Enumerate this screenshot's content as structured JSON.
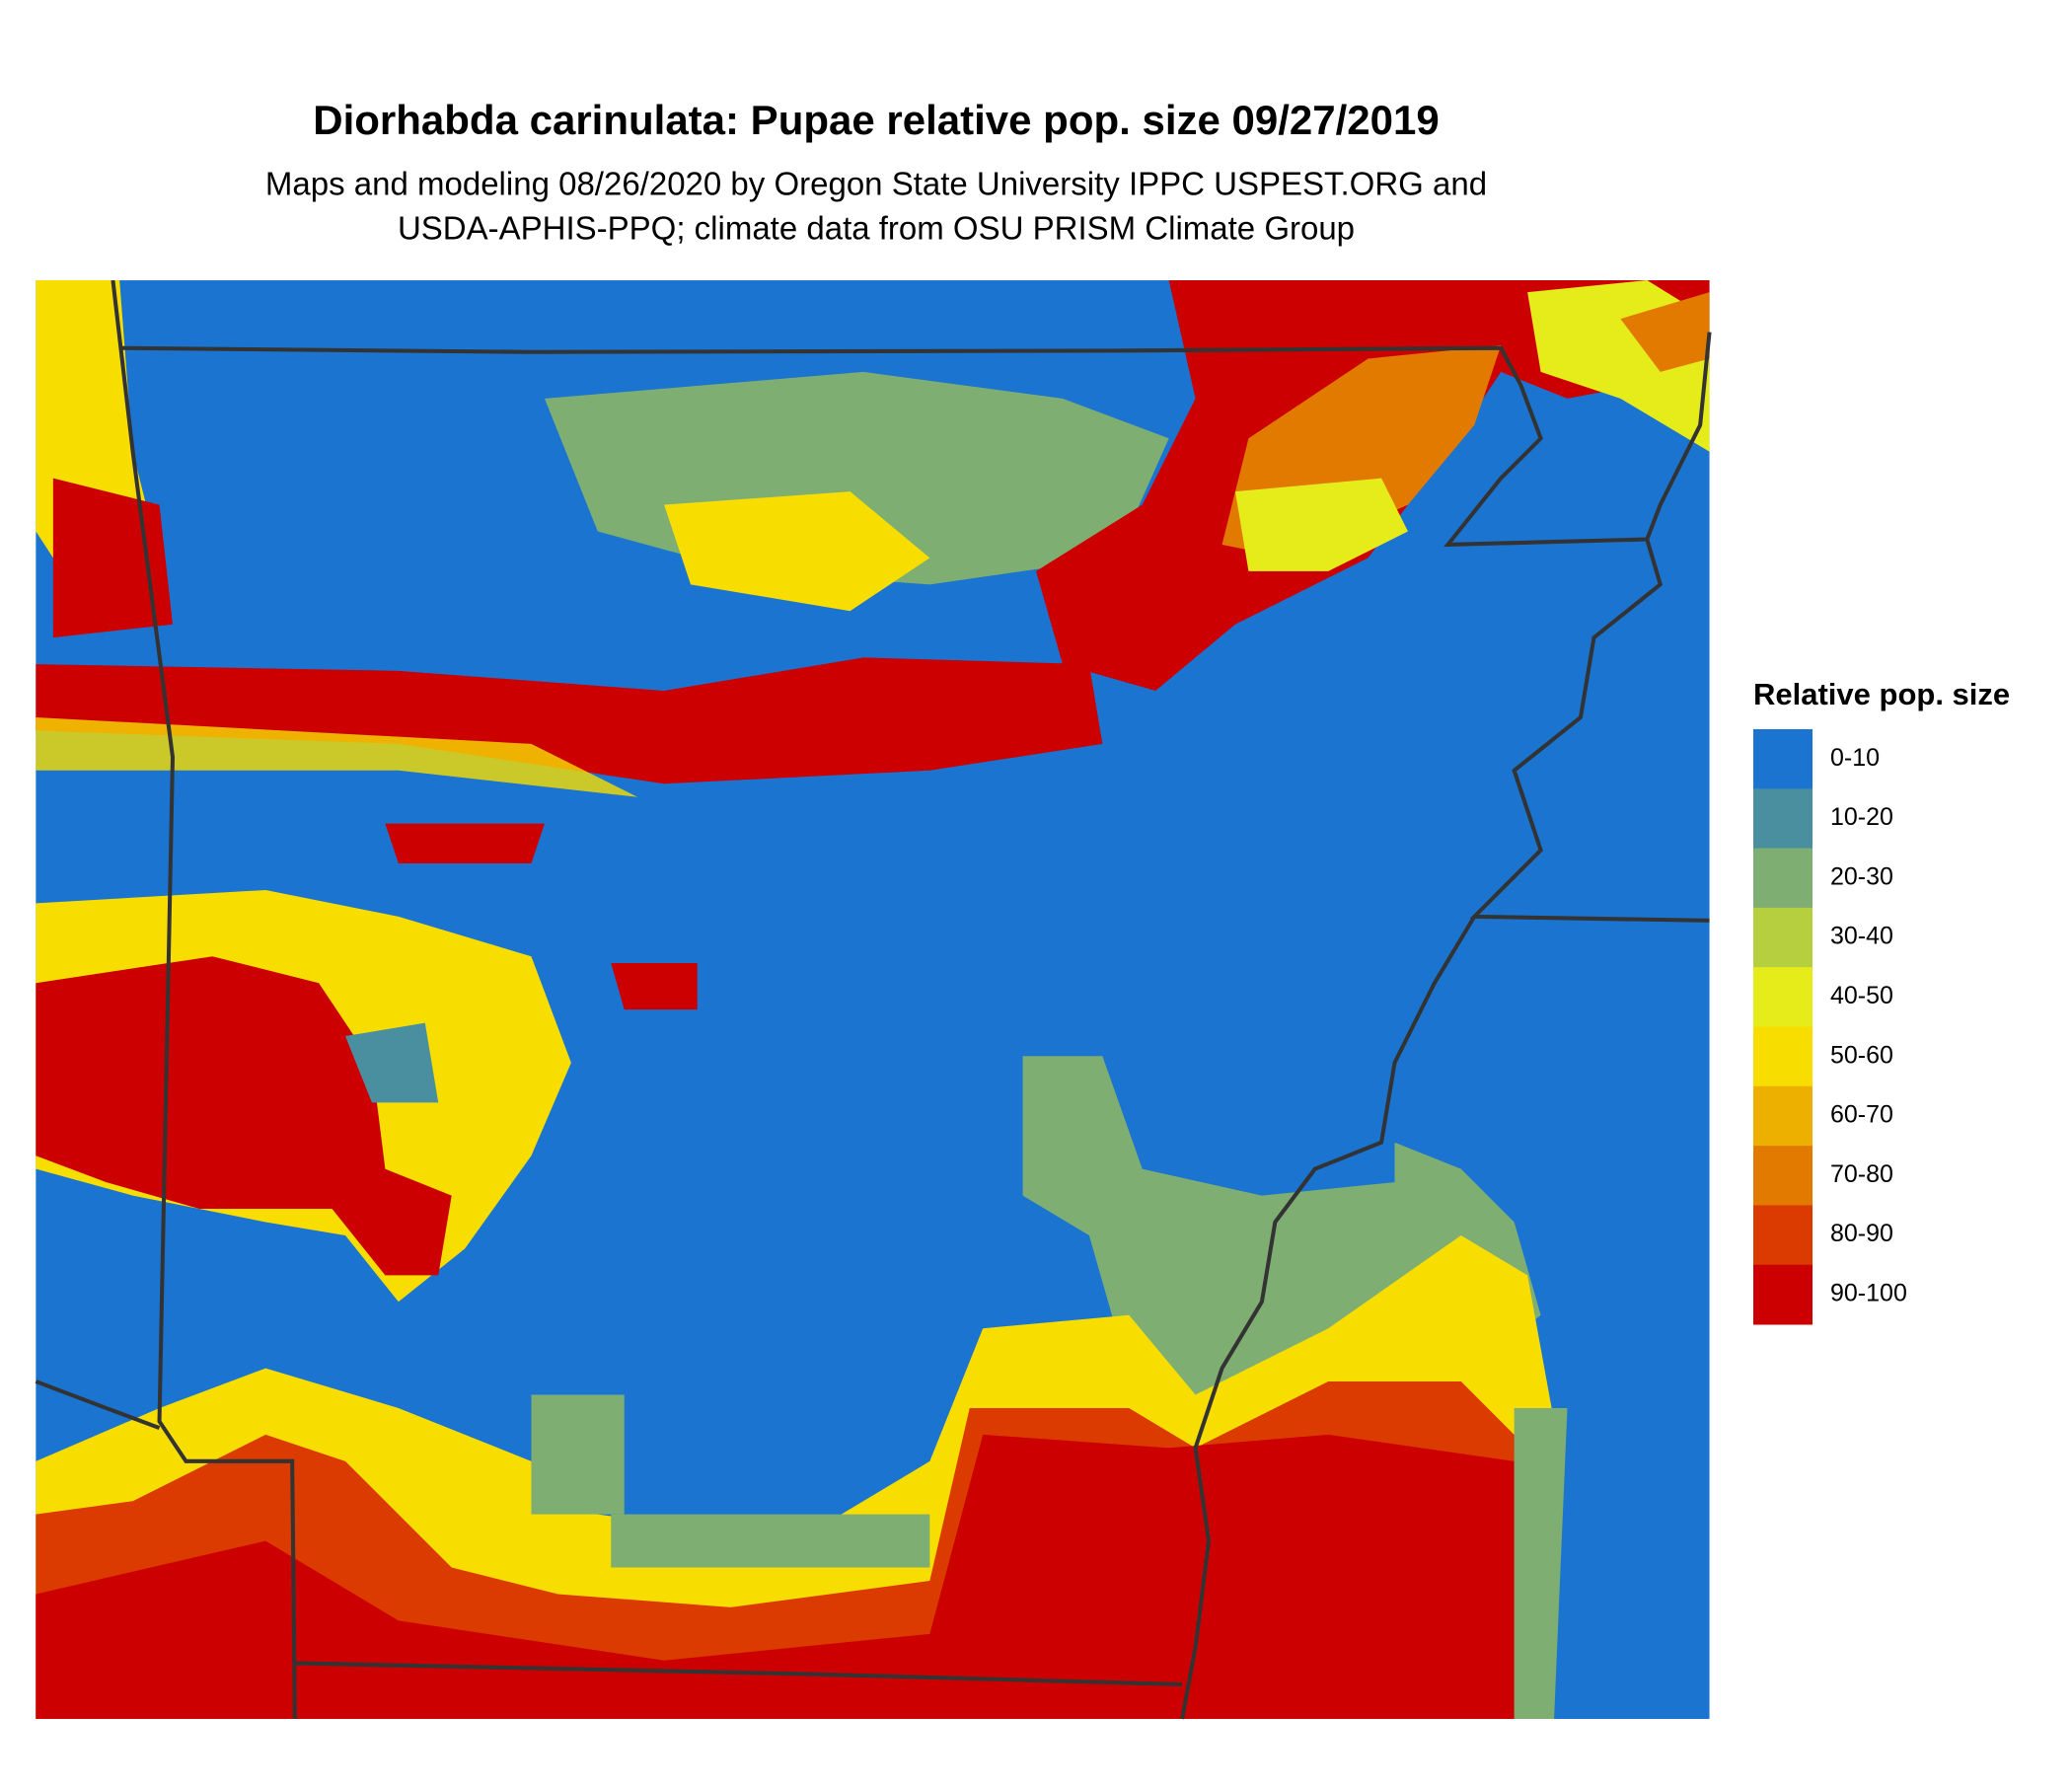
{
  "title": "Diorhabda carinulata: Pupae relative pop. size 09/27/2019",
  "subtitle": [
    "Maps and modeling 08/26/2020 by Oregon State University IPPC USPEST.ORG and",
    "USDA-APHIS-PPQ; climate data from OSU PRISM Climate Group"
  ],
  "legend": {
    "title": "Relative pop. size",
    "items": [
      {
        "label": "0-10",
        "color": "#1a74d0"
      },
      {
        "label": "10-20",
        "color": "#4a8fa0"
      },
      {
        "label": "20-30",
        "color": "#7fae72"
      },
      {
        "label": "30-40",
        "color": "#b5cf3f"
      },
      {
        "label": "40-50",
        "color": "#e6ec1a"
      },
      {
        "label": "50-60",
        "color": "#f7de00"
      },
      {
        "label": "60-70",
        "color": "#eeb000"
      },
      {
        "label": "70-80",
        "color": "#e37a00"
      },
      {
        "label": "80-90",
        "color": "#dc3b00"
      },
      {
        "label": "90-100",
        "color": "#cc0000"
      }
    ]
  }
}
